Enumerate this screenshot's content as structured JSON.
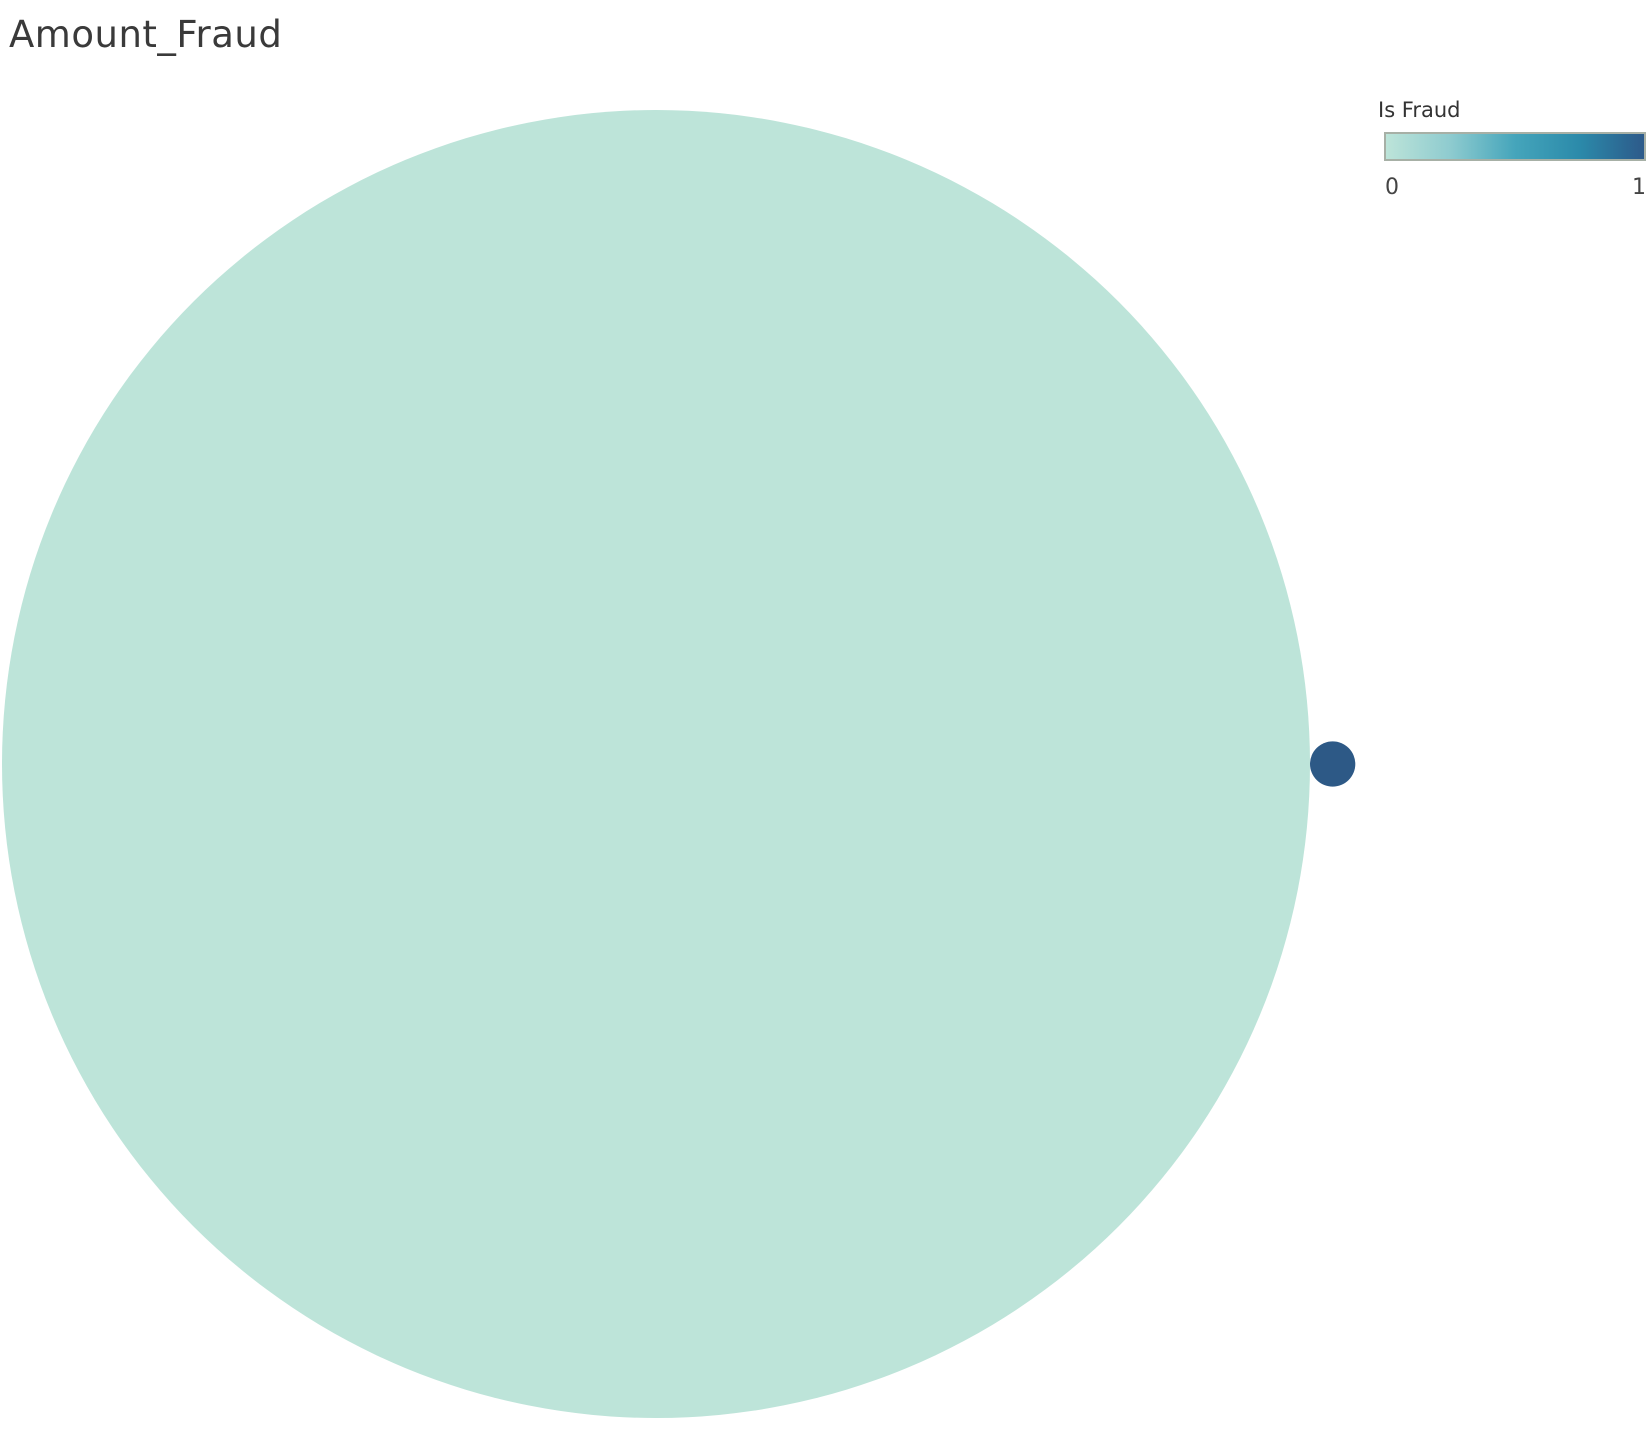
{
  "chart_data": {
    "type": "bubble",
    "title": "Amount_Fraud",
    "color_field": "Is Fraud",
    "color_scale": {
      "min": 0,
      "max": 1,
      "min_label": "0",
      "max_label": "1",
      "colors": [
        "#bde4d9",
        "#8ecbcf",
        "#45a5bb",
        "#2b8aaa",
        "#2d5a8a"
      ]
    },
    "bubbles": [
      {
        "is_fraud": 0,
        "relative_amount": 1.0,
        "color": "#bde4d9"
      },
      {
        "is_fraud": 1,
        "relative_amount": 0.0012,
        "color": "#2d5986"
      }
    ],
    "legend_position": "top-right"
  }
}
